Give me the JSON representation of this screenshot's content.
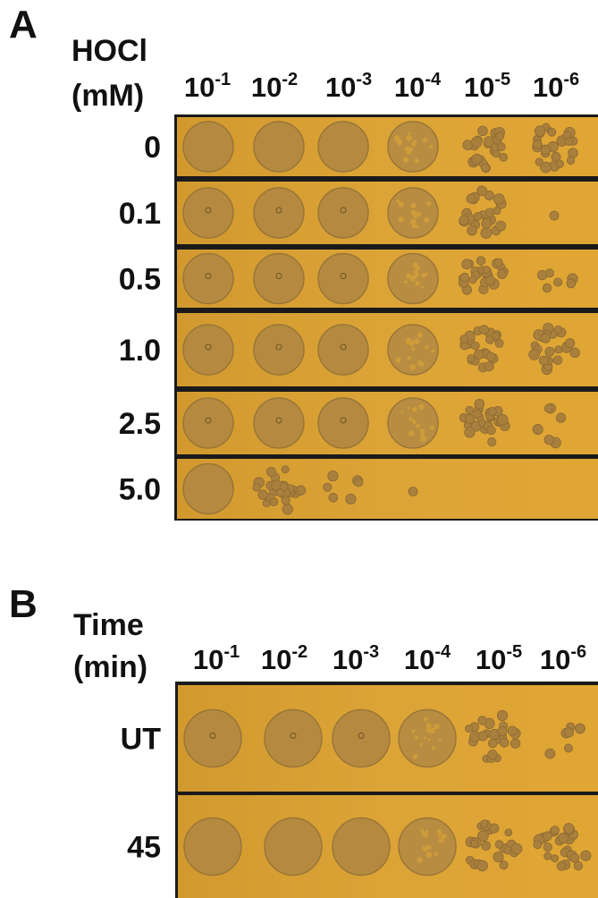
{
  "panels": [
    {
      "label": "A",
      "axis_title": [
        "HOCl",
        "(mM)"
      ],
      "dilutions": [
        {
          "base": "10",
          "exponent": "-1"
        },
        {
          "base": "10",
          "exponent": "-2"
        },
        {
          "base": "10",
          "exponent": "-3"
        },
        {
          "base": "10",
          "exponent": "-4"
        },
        {
          "base": "10",
          "exponent": "-5"
        },
        {
          "base": "10",
          "exponent": "-6"
        }
      ],
      "rows": [
        "0",
        "0.1",
        "0.5",
        "1.0",
        "2.5",
        "5.0"
      ]
    },
    {
      "label": "B",
      "axis_title": [
        "Time",
        "(min)"
      ],
      "dilutions": [
        {
          "base": "10",
          "exponent": "-1"
        },
        {
          "base": "10",
          "exponent": "-2"
        },
        {
          "base": "10",
          "exponent": "-3"
        },
        {
          "base": "10",
          "exponent": "-4"
        },
        {
          "base": "10",
          "exponent": "-5"
        },
        {
          "base": "10",
          "exponent": "-6"
        }
      ],
      "rows": [
        "UT",
        "45"
      ]
    }
  ]
}
